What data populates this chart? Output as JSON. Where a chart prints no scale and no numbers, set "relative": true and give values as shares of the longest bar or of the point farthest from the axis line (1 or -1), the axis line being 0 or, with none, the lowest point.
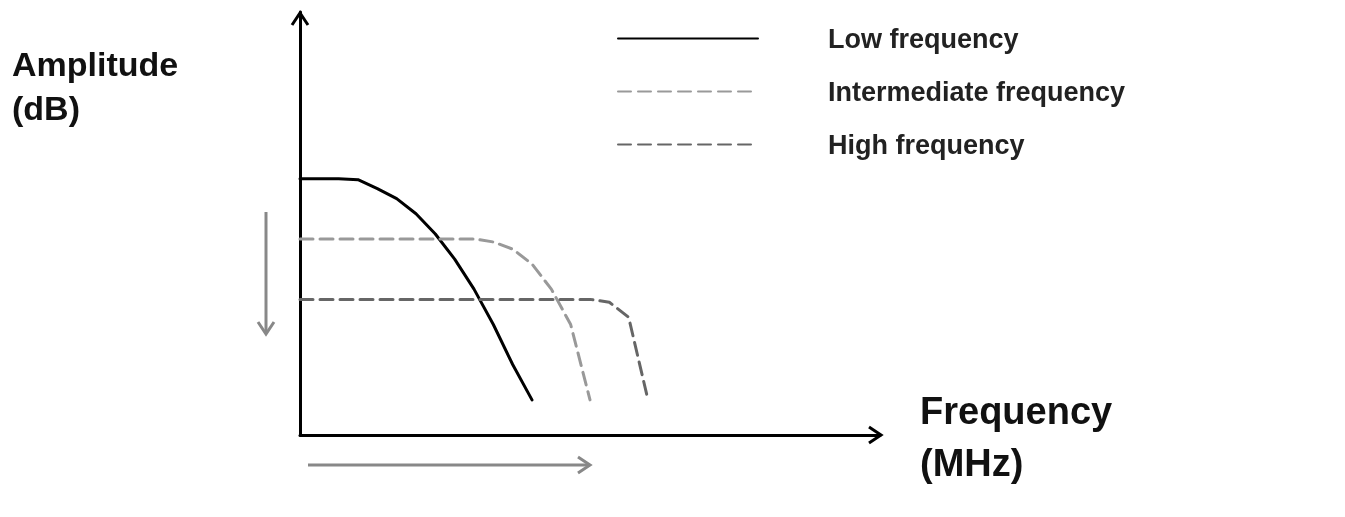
{
  "chart_data": {
    "type": "line",
    "relative": true,
    "xlabel": "Frequency\n(MHz)",
    "ylabel": "Amplitude\n(dB)",
    "legend": "top right",
    "grid": false,
    "marker": "none",
    "categories": [
      null,
      null,
      null,
      null,
      null,
      null,
      null,
      null,
      null,
      null,
      null,
      null,
      null,
      null,
      null,
      null,
      null,
      null,
      null,
      null,
      null,
      null,
      null,
      null,
      null,
      null,
      null,
      null,
      null,
      null,
      null
    ],
    "series": [
      {
        "name": "Low frequency",
        "color": "#000000",
        "line_style": "solid",
        "values": [
          1,
          1,
          1,
          0.996,
          0.961,
          0.922,
          0.863,
          0.784,
          0.686,
          0.569,
          0.431,
          0.275,
          0.137,
          null,
          null,
          null,
          null,
          null,
          null,
          null,
          null,
          null,
          null,
          null,
          null,
          null,
          null,
          null,
          null,
          null,
          null
        ]
      },
      {
        "name": "Intermediate frequency",
        "color": "#999999",
        "line_style": "dashed",
        "values": [
          0.765,
          0.765,
          0.765,
          0.765,
          0.765,
          0.765,
          0.765,
          0.765,
          0.765,
          0.765,
          0.753,
          0.725,
          0.667,
          0.569,
          0.431,
          0.137,
          null,
          null,
          null,
          null,
          null,
          null,
          null,
          null,
          null,
          null,
          null,
          null,
          null,
          null,
          null
        ]
      },
      {
        "name": "High frequency",
        "color": "#666666",
        "line_style": "dashed",
        "values": [
          0.529,
          0.529,
          0.529,
          0.529,
          0.529,
          0.529,
          0.529,
          0.529,
          0.529,
          0.529,
          0.529,
          0.529,
          0.529,
          0.529,
          0.529,
          0.529,
          0.518,
          0.459,
          0.137,
          null,
          null,
          null,
          null,
          null,
          null,
          null,
          null,
          null,
          null,
          null,
          null
        ]
      }
    ]
  }
}
